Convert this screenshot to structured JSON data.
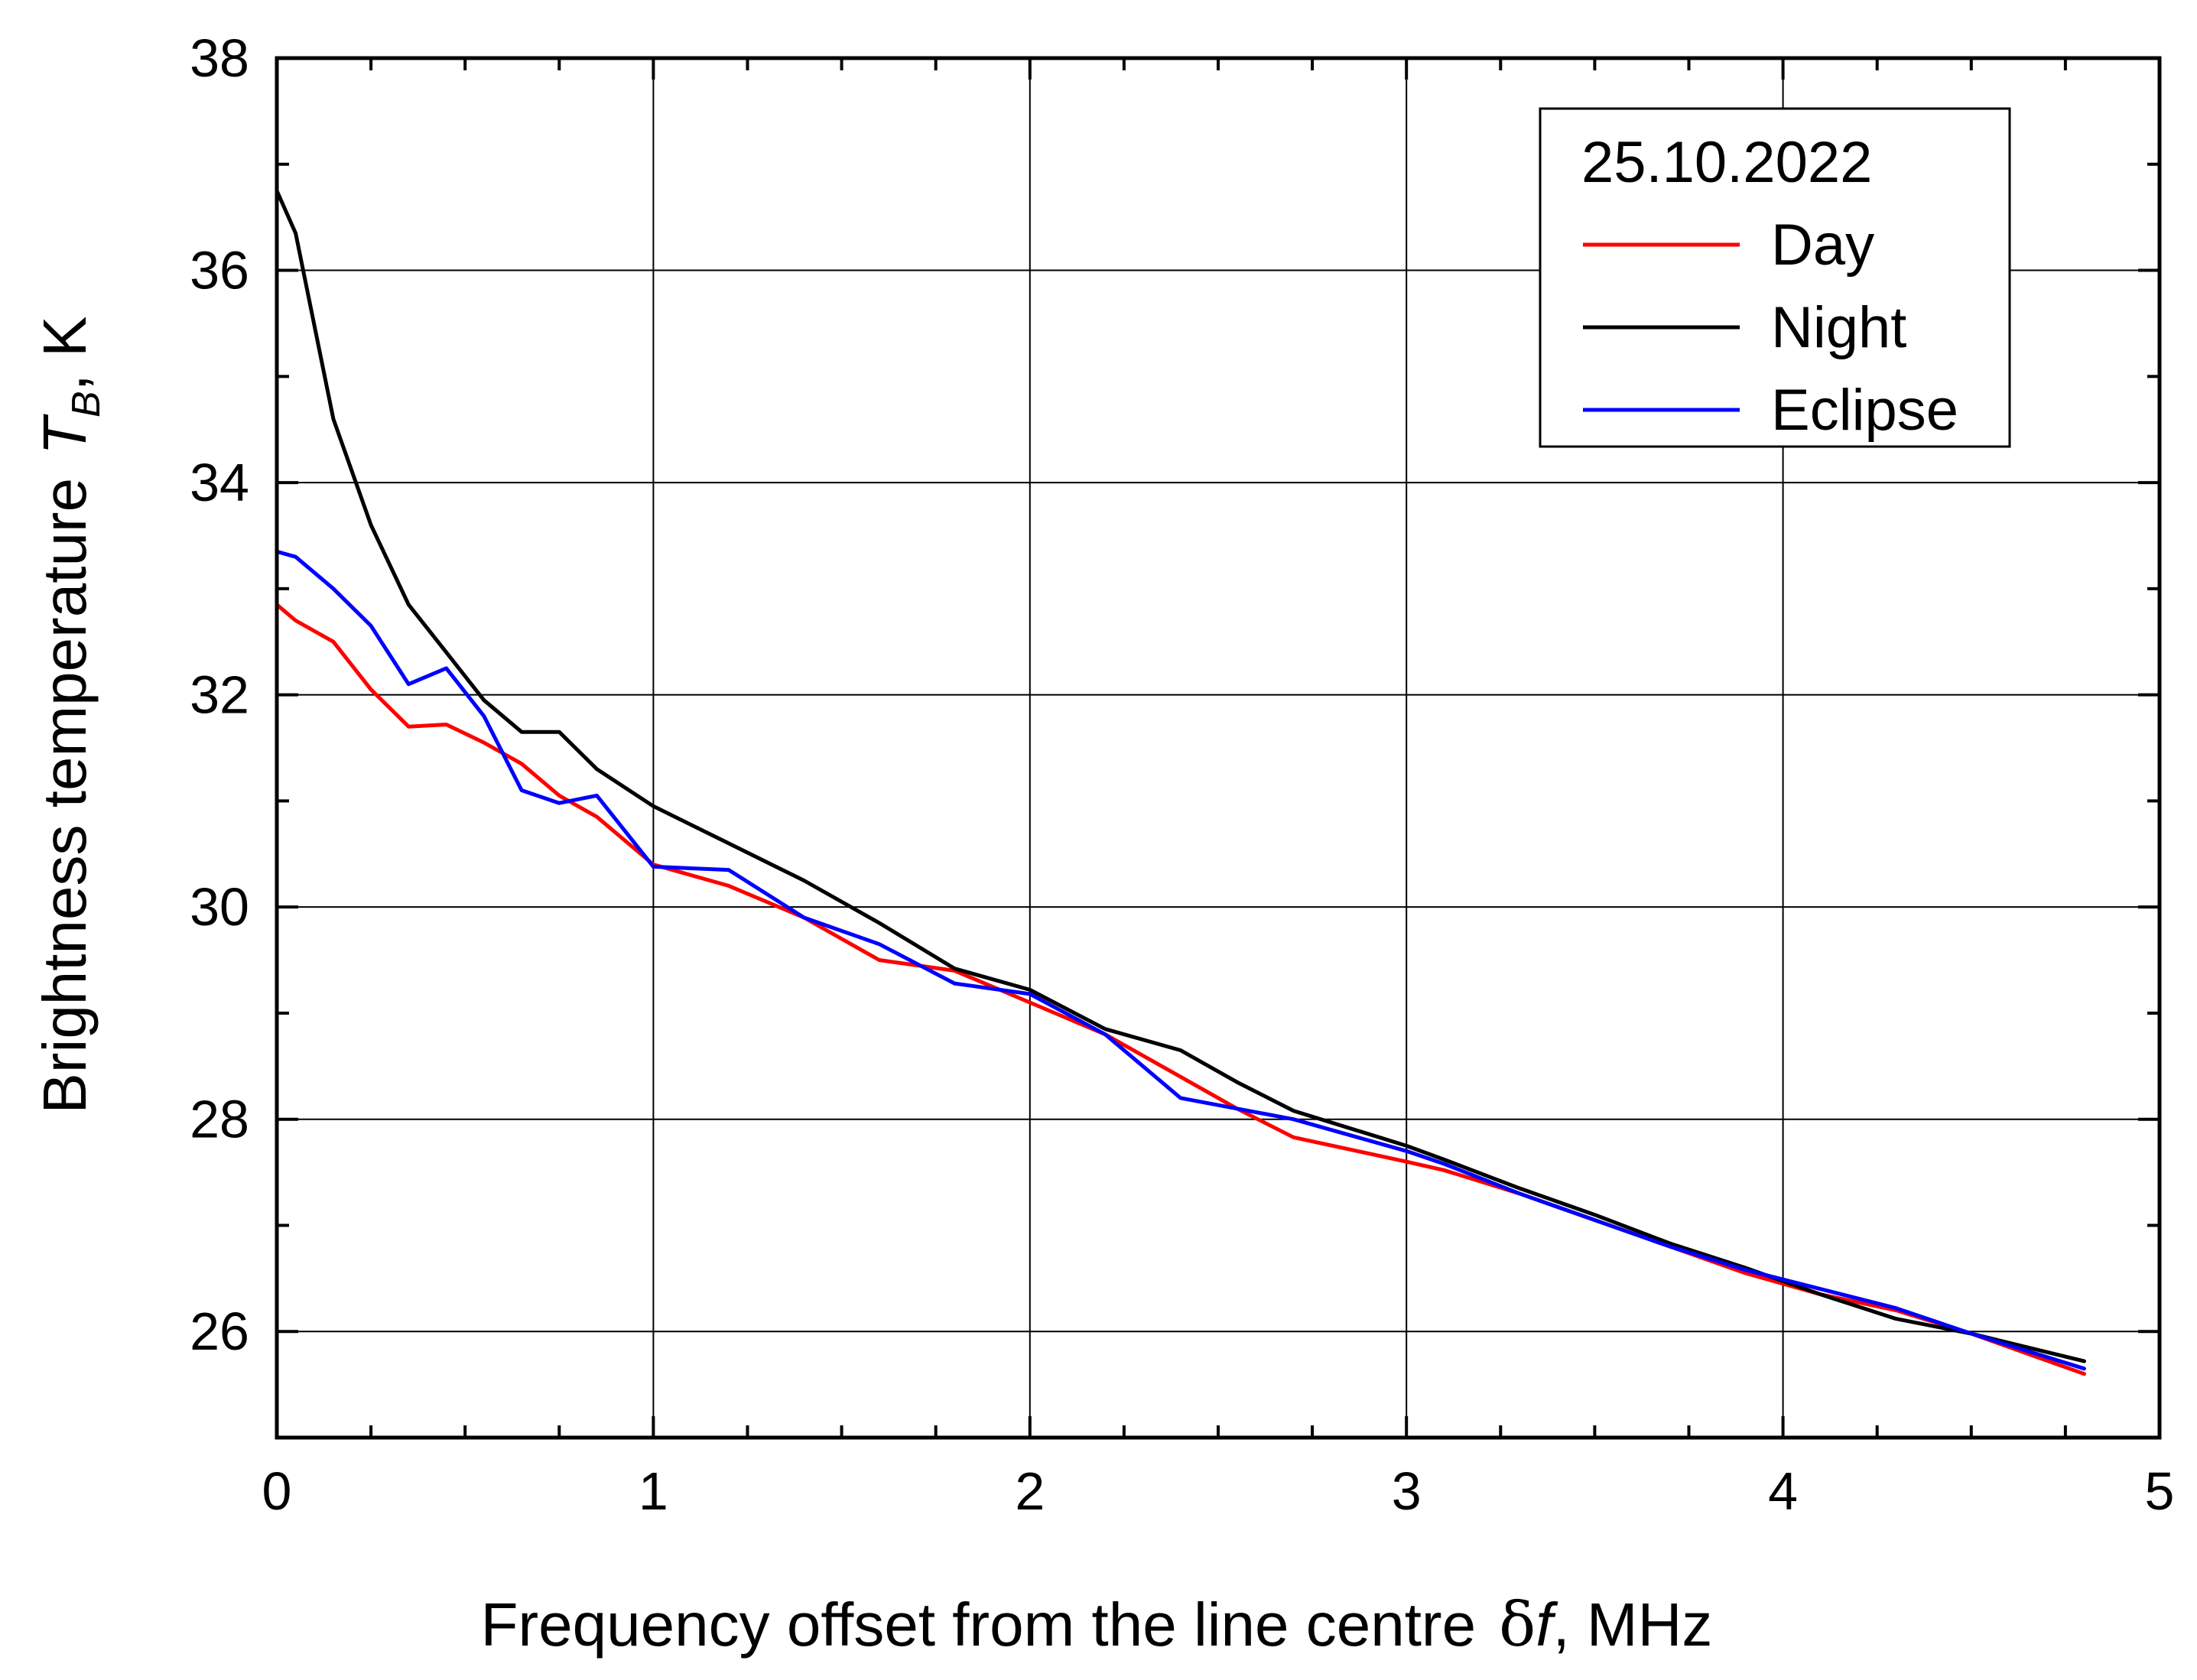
{
  "chart_data": {
    "type": "line",
    "title": "",
    "xlabel": "Frequency offset from the line centre",
    "xlabel_symbol": "δ",
    "xlabel_symbol_var": "f",
    "xlabel_unit": ",  MHz",
    "ylabel": "Brightness temperature",
    "ylabel_symbol": "T",
    "ylabel_subscript": "B",
    "ylabel_unit": ",  K",
    "xlim": [
      0,
      5
    ],
    "ylim": [
      25,
      38
    ],
    "x_ticks": [
      "0",
      "1",
      "2",
      "3",
      "4",
      "5"
    ],
    "y_ticks": [
      "26",
      "28",
      "30",
      "32",
      "34",
      "36",
      "38"
    ],
    "grid": true,
    "legend": {
      "title": "25.10.2022",
      "position": "top-right"
    },
    "series": [
      {
        "name": "Day",
        "color": "#ff0000",
        "points": [
          [
            0,
            32.85
          ],
          [
            0.05,
            32.7
          ],
          [
            0.15,
            32.5
          ],
          [
            0.25,
            32.05
          ],
          [
            0.35,
            31.7
          ],
          [
            0.45,
            31.72
          ],
          [
            0.55,
            31.55
          ],
          [
            0.65,
            31.35
          ],
          [
            0.75,
            31.05
          ],
          [
            0.85,
            30.85
          ],
          [
            1.0,
            30.4
          ],
          [
            1.2,
            30.2
          ],
          [
            1.4,
            29.9
          ],
          [
            1.6,
            29.5
          ],
          [
            1.8,
            29.4
          ],
          [
            2.0,
            29.1
          ],
          [
            2.2,
            28.8
          ],
          [
            2.4,
            28.4
          ],
          [
            2.55,
            28.1
          ],
          [
            2.7,
            27.83
          ],
          [
            3.0,
            27.6
          ],
          [
            3.1,
            27.52
          ],
          [
            3.3,
            27.3
          ],
          [
            3.5,
            27.05
          ],
          [
            3.7,
            26.8
          ],
          [
            3.9,
            26.55
          ],
          [
            4.1,
            26.35
          ],
          [
            4.3,
            26.2
          ],
          [
            4.5,
            25.98
          ],
          [
            4.8,
            25.6
          ]
        ]
      },
      {
        "name": "Night",
        "color": "#000000",
        "points": [
          [
            0,
            36.75
          ],
          [
            0.05,
            36.35
          ],
          [
            0.15,
            34.6
          ],
          [
            0.25,
            33.6
          ],
          [
            0.35,
            32.85
          ],
          [
            0.45,
            32.4
          ],
          [
            0.55,
            31.95
          ],
          [
            0.65,
            31.65
          ],
          [
            0.75,
            31.65
          ],
          [
            0.85,
            31.3
          ],
          [
            1.0,
            30.95
          ],
          [
            1.2,
            30.6
          ],
          [
            1.4,
            30.25
          ],
          [
            1.6,
            29.85
          ],
          [
            1.8,
            29.42
          ],
          [
            2.0,
            29.22
          ],
          [
            2.2,
            28.85
          ],
          [
            2.4,
            28.65
          ],
          [
            2.55,
            28.35
          ],
          [
            2.7,
            28.08
          ],
          [
            3.0,
            27.75
          ],
          [
            3.1,
            27.62
          ],
          [
            3.3,
            27.35
          ],
          [
            3.5,
            27.1
          ],
          [
            3.7,
            26.83
          ],
          [
            3.9,
            26.6
          ],
          [
            4.1,
            26.35
          ],
          [
            4.3,
            26.12
          ],
          [
            4.5,
            25.98
          ],
          [
            4.8,
            25.72
          ]
        ]
      },
      {
        "name": "Eclipse",
        "color": "#0000ff",
        "points": [
          [
            0,
            33.35
          ],
          [
            0.05,
            33.3
          ],
          [
            0.15,
            33.0
          ],
          [
            0.25,
            32.65
          ],
          [
            0.35,
            32.1
          ],
          [
            0.45,
            32.25
          ],
          [
            0.55,
            31.8
          ],
          [
            0.65,
            31.1
          ],
          [
            0.75,
            30.98
          ],
          [
            0.85,
            31.05
          ],
          [
            1.0,
            30.38
          ],
          [
            1.2,
            30.35
          ],
          [
            1.4,
            29.9
          ],
          [
            1.6,
            29.65
          ],
          [
            1.8,
            29.28
          ],
          [
            2.0,
            29.18
          ],
          [
            2.2,
            28.8
          ],
          [
            2.4,
            28.2
          ],
          [
            2.55,
            28.1
          ],
          [
            2.7,
            28.0
          ],
          [
            3.0,
            27.7
          ],
          [
            3.1,
            27.58
          ],
          [
            3.3,
            27.3
          ],
          [
            3.5,
            27.05
          ],
          [
            3.7,
            26.8
          ],
          [
            3.9,
            26.58
          ],
          [
            4.1,
            26.4
          ],
          [
            4.3,
            26.22
          ],
          [
            4.5,
            25.98
          ],
          [
            4.8,
            25.65
          ]
        ]
      }
    ]
  }
}
